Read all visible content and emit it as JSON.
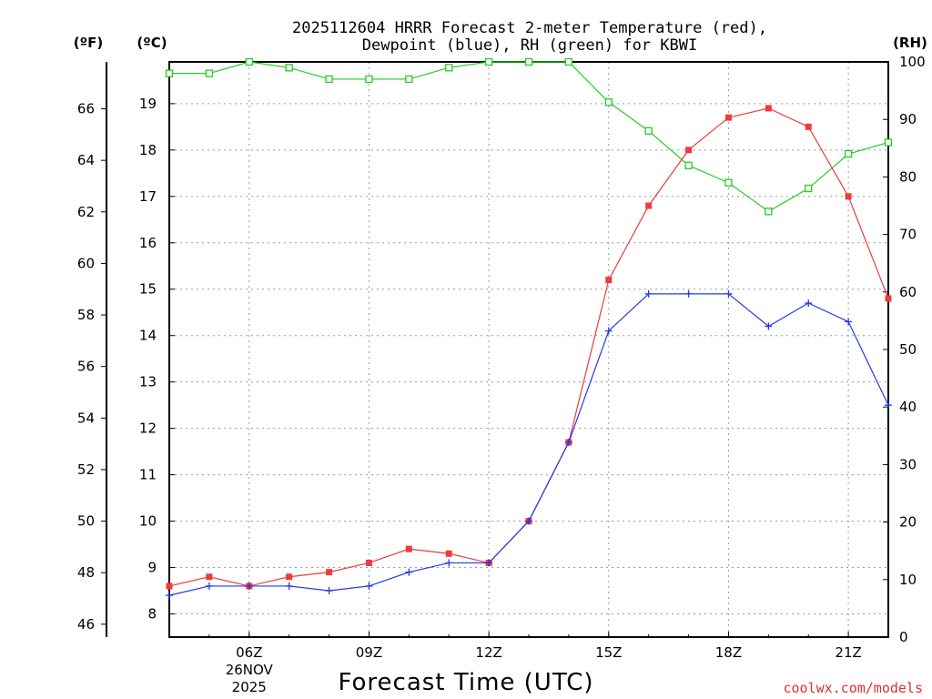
{
  "colors": {
    "temp": "#ee3b3b",
    "dew": "#2438e8",
    "rh": "#22cc22",
    "credit": "#e03030"
  },
  "units": {
    "f": "(ºF)",
    "c": "(ºC)",
    "rh": "(RH)"
  },
  "credit": "coolwx.com/models",
  "chart_data": {
    "type": "line",
    "title": [
      "2025112604 HRRR Forecast 2-meter Temperature (red),",
      "Dewpoint (blue), RH (green) for KBWI"
    ],
    "xlabel": "Forecast Time (UTC)",
    "x_hours": [
      4,
      5,
      6,
      7,
      8,
      9,
      10,
      11,
      12,
      13,
      14,
      15,
      16,
      17,
      18,
      19,
      20,
      21,
      22
    ],
    "xlim": [
      4,
      22
    ],
    "x_ticks": [
      {
        "hour": 6,
        "label": "06Z",
        "sub": [
          "26NOV",
          "2025"
        ]
      },
      {
        "hour": 9,
        "label": "09Z"
      },
      {
        "hour": 12,
        "label": "12Z"
      },
      {
        "hour": 15,
        "label": "15Z"
      },
      {
        "hour": 18,
        "label": "18Z"
      },
      {
        "hour": 21,
        "label": "21Z"
      }
    ],
    "ylim_c": [
      7.5,
      19.9
    ],
    "yticks_c": [
      "8",
      "9",
      "10",
      "11",
      "12",
      "13",
      "14",
      "15",
      "16",
      "17",
      "18",
      "19"
    ],
    "yticks_f": [
      "46",
      "48",
      "50",
      "52",
      "54",
      "56",
      "58",
      "60",
      "62",
      "64",
      "66"
    ],
    "ylim_rh": [
      0,
      100
    ],
    "yticks_rh": [
      "0",
      "10",
      "20",
      "30",
      "40",
      "50",
      "60",
      "70",
      "80",
      "90",
      "100"
    ],
    "series": [
      {
        "name": "2-meter Temperature",
        "unit": "C",
        "marker": "square-filled",
        "values": [
          8.6,
          8.8,
          8.6,
          8.8,
          8.9,
          9.1,
          9.4,
          9.3,
          9.1,
          10.0,
          11.7,
          15.2,
          16.8,
          18.0,
          18.7,
          18.9,
          18.5,
          17.0,
          14.8
        ]
      },
      {
        "name": "Dewpoint",
        "unit": "C",
        "marker": "plus",
        "values": [
          8.4,
          8.6,
          8.6,
          8.6,
          8.5,
          8.6,
          8.9,
          9.1,
          9.1,
          10.0,
          11.7,
          14.1,
          14.9,
          14.9,
          14.9,
          14.2,
          14.7,
          14.3,
          12.5
        ]
      },
      {
        "name": "RH",
        "unit": "%",
        "marker": "square-open",
        "values": [
          98,
          98,
          100,
          99,
          97,
          97,
          97,
          99,
          100,
          100,
          100,
          93,
          88,
          82,
          79,
          74,
          78,
          84,
          86
        ]
      }
    ]
  }
}
